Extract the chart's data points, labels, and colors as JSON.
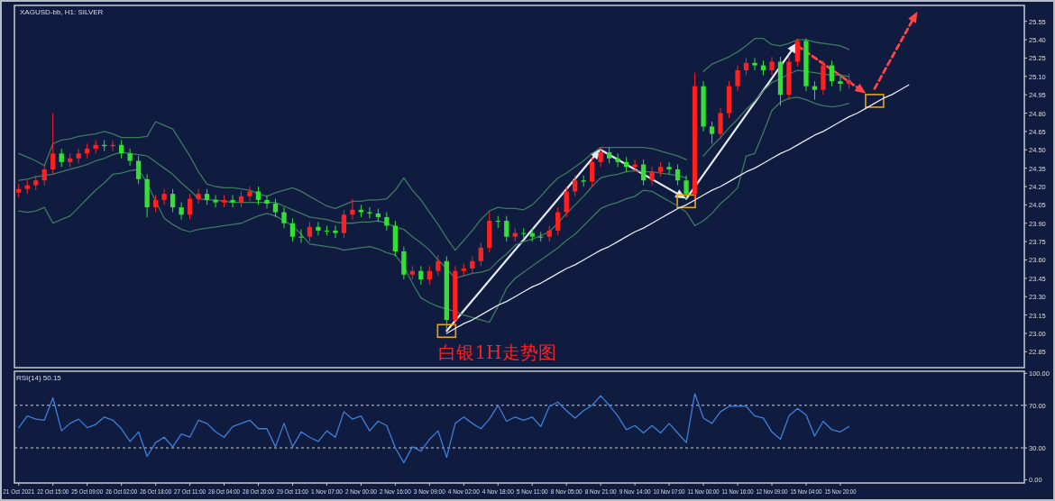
{
  "chart_data": [
    {
      "type": "candlestick",
      "title": "XAGUSD-bb, H1: SILVER",
      "annotations": [
        "白银1H走势图"
      ],
      "ylim": [
        22.72,
        25.68
      ],
      "tick_labels": "y",
      "yticks": [
        22.85,
        {
          "value": 23,
          "label": "23.00"
        },
        23.15,
        {
          "value": 23.3,
          "label": "23.30"
        },
        23.45,
        {
          "value": 23.6,
          "label": "23.60"
        },
        23.75,
        {
          "value": 23.9,
          "label": "23.90"
        },
        24.05,
        {
          "value": 24.2,
          "label": "24.20"
        },
        24.35,
        {
          "value": 24.5,
          "label": "24.50"
        },
        24.65,
        {
          "value": 24.8,
          "label": "24.80"
        },
        24.95,
        {
          "value": 25.1,
          "label": "25.10"
        },
        25.25,
        {
          "value": 25.4,
          "label": "25.40"
        },
        25.55
      ],
      "series": [
        {
          "type": "line",
          "color": "#3e7a62",
          "marker": "none",
          "values": [
            24.47,
            24.44,
            24.41,
            24.37,
            24.55,
            24.58,
            24.59,
            24.61,
            24.62,
            24.63,
            24.65,
            24.63,
            24.6,
            24.6,
            24.6,
            24.61,
            24.73,
            24.7,
            24.67,
            24.56,
            24.45,
            24.32,
            24.22,
            24.2,
            24.19,
            24.19,
            24.18,
            24.17,
            24.14,
            24.12,
            24.15,
            24.17,
            24.19,
            24.16,
            24.12,
            24.08,
            24.04,
            24.02,
            24.05,
            24.08,
            24.08,
            24.09,
            24.09,
            24.1,
            24.17,
            24.27,
            24.17,
            24.09,
            23.99,
            23.89,
            23.78,
            23.68,
            23.76,
            23.84,
            23.93,
            24,
            24.03,
            24.02,
            24.02,
            24.01,
            24.05,
            24.12,
            24.2,
            24.27,
            24.31,
            24.36,
            24.41,
            24.47,
            24.52,
            24.52,
            24.52,
            24.52,
            24.52,
            24.52,
            24.51,
            24.49,
            24.47,
            24.45,
            24.42,
            null,
            25.14,
            25.2,
            25.23,
            25.26,
            25.3,
            25.35,
            25.41,
            25.41,
            25.36,
            25.35,
            25.37,
            25.4,
            25.4,
            25.38,
            25.37,
            25.36,
            25.35,
            25.32,
            null,
            null,
            null,
            null,
            null,
            null,
            null,
            null,
            null,
            null,
            null,
            null,
            null,
            null,
            null,
            null,
            null,
            null,
            null,
            null
          ]
        },
        {
          "type": "line",
          "color": "#3e7a62",
          "marker": "none",
          "values": [
            24.25,
            24.26,
            24.28,
            24.29,
            24.3,
            24.32,
            24.34,
            24.36,
            24.38,
            24.41,
            24.43,
            24.46,
            24.48,
            24.47,
            24.46,
            24.45,
            24.4,
            24.35,
            24.3,
            24.23,
            24.17,
            24.1,
            24.09,
            24.09,
            24.08,
            24.07,
            24.07,
            24.07,
            24.07,
            24.07,
            24.07,
            24.04,
            24.01,
            23.98,
            23.95,
            23.94,
            23.93,
            23.91,
            23.9,
            23.9,
            23.91,
            23.91,
            23.92,
            23.9,
            23.87,
            23.85,
            23.79,
            23.74,
            23.68,
            23.6,
            23.53,
            23.45,
            23.47,
            23.49,
            23.5,
            23.52,
            23.59,
            23.65,
            23.72,
            23.75,
            23.77,
            23.8,
            23.83,
            23.9,
            23.98,
            24.05,
            24.12,
            24.2,
            24.27,
            24.29,
            24.3,
            24.32,
            24.33,
            24.32,
            24.32,
            24.31,
            24.3,
            24.29,
            24.27,
            null,
            24.45,
            24.53,
            24.6,
            24.68,
            24.75,
            24.83,
            24.9,
            24.98,
            25.05,
            25.08,
            25.12,
            25.15,
            25.14,
            25.13,
            25.12,
            25.11,
            25.11,
            25.1,
            null,
            null,
            null,
            null,
            null,
            null,
            null,
            null,
            null,
            null,
            null,
            null,
            null,
            null,
            null,
            null,
            null,
            null,
            null,
            null
          ]
        },
        {
          "type": "line",
          "color": "#3e7a62",
          "marker": "none",
          "values": [
            24,
            23.99,
            24,
            24.03,
            23.9,
            23.93,
            23.96,
            24.03,
            24.1,
            24.17,
            24.23,
            24.3,
            24.31,
            24.33,
            24.34,
            24.23,
            24.08,
            23.94,
            23.89,
            23.85,
            23.83,
            23.85,
            23.86,
            23.87,
            23.88,
            23.89,
            23.9,
            23.93,
            23.96,
            23.98,
            23.96,
            23.92,
            23.88,
            23.81,
            23.73,
            23.72,
            23.71,
            23.7,
            23.68,
            23.69,
            23.7,
            23.71,
            23.69,
            23.66,
            23.64,
            23.55,
            23.41,
            23.29,
            23.25,
            23.22,
            23.2,
            23.18,
            23.15,
            23.13,
            23.11,
            23.09,
            23.22,
            23.37,
            23.45,
            23.5,
            23.55,
            23.6,
            23.65,
            23.7,
            23.76,
            23.81,
            23.88,
            23.95,
            24.02,
            24.05,
            24.07,
            24.1,
            24.12,
            24.17,
            24.16,
            24.12,
            24.08,
            24.04,
            23.99,
            23.88,
            23.92,
            23.98,
            24.06,
            24.12,
            24.19,
            24.45,
            24.47,
            24.64,
            24.82,
            24.89,
            24.92,
            24.93,
            24.91,
            24.88,
            24.86,
            24.85,
            24.86,
            24.88,
            null,
            null,
            null,
            null,
            null,
            null,
            null,
            null,
            null,
            null,
            null,
            null,
            null,
            null,
            null,
            null,
            null,
            null,
            null,
            null
          ]
        },
        {
          "ohlc": [
            [
              24.15,
              24.22,
              24.11,
              24.18
            ],
            [
              24.18,
              24.25,
              24.14,
              24.21
            ],
            [
              24.21,
              24.29,
              24.17,
              24.25
            ],
            [
              24.25,
              24.38,
              24.21,
              24.34
            ],
            [
              24.34,
              24.8,
              24.3,
              24.47
            ],
            [
              24.47,
              24.51,
              24.36,
              24.4
            ],
            [
              24.4,
              24.47,
              24.36,
              24.43
            ],
            [
              24.43,
              24.51,
              24.39,
              24.47
            ],
            [
              24.47,
              24.55,
              24.43,
              24.51
            ],
            [
              24.51,
              24.58,
              24.47,
              24.54
            ],
            [
              24.54,
              24.58,
              24.49,
              24.53
            ],
            [
              24.53,
              24.58,
              24.49,
              24.54
            ],
            [
              24.54,
              24.58,
              24.43,
              24.47
            ],
            [
              24.47,
              24.51,
              24.37,
              24.41
            ],
            [
              24.41,
              24.45,
              24.22,
              24.26
            ],
            [
              24.26,
              24.3,
              23.95,
              24.03
            ],
            [
              24.03,
              24.13,
              23.99,
              24.09
            ],
            [
              24.09,
              24.18,
              24.05,
              24.14
            ],
            [
              24.14,
              24.18,
              23.99,
              24.03
            ],
            [
              24.03,
              24.07,
              23.93,
              23.97
            ],
            [
              23.97,
              24.14,
              23.93,
              24.1
            ],
            [
              24.1,
              24.18,
              24.06,
              24.14
            ],
            [
              24.14,
              24.18,
              24.05,
              24.09
            ],
            [
              24.09,
              24.13,
              24.03,
              24.07
            ],
            [
              24.07,
              24.13,
              24.03,
              24.09
            ],
            [
              24.09,
              24.13,
              24.03,
              24.07
            ],
            [
              24.07,
              24.16,
              24.03,
              24.12
            ],
            [
              24.12,
              24.2,
              24.08,
              24.16
            ],
            [
              24.16,
              24.2,
              24.05,
              24.09
            ],
            [
              24.09,
              24.13,
              24.02,
              24.06
            ],
            [
              24.06,
              24.1,
              23.95,
              23.99
            ],
            [
              23.99,
              24.03,
              23.86,
              23.9
            ],
            [
              23.9,
              23.94,
              23.75,
              23.79
            ],
            [
              23.79,
              23.85,
              23.74,
              23.79
            ],
            [
              23.79,
              23.91,
              23.75,
              23.87
            ],
            [
              23.87,
              23.91,
              23.8,
              23.84
            ],
            [
              23.84,
              23.88,
              23.8,
              23.84
            ],
            [
              23.84,
              23.88,
              23.78,
              23.82
            ],
            [
              23.82,
              24.01,
              23.78,
              23.97
            ],
            [
              23.97,
              24.1,
              23.93,
              24.01
            ],
            [
              24.01,
              24.05,
              23.95,
              23.99
            ],
            [
              23.99,
              24.03,
              23.94,
              23.98
            ],
            [
              23.98,
              24.02,
              23.91,
              23.95
            ],
            [
              23.95,
              23.99,
              23.84,
              23.88
            ],
            [
              23.88,
              23.92,
              23.63,
              23.67
            ],
            [
              23.67,
              23.71,
              23.44,
              23.48
            ],
            [
              23.48,
              23.55,
              23.44,
              23.51
            ],
            [
              23.51,
              23.55,
              23.4,
              23.44
            ],
            [
              23.44,
              23.55,
              23.4,
              23.51
            ],
            [
              23.51,
              23.64,
              23.47,
              23.59
            ],
            [
              23.59,
              23.63,
              23.03,
              23.11
            ],
            [
              23.11,
              23.55,
              23.07,
              23.51
            ],
            [
              23.51,
              23.57,
              23.47,
              23.53
            ],
            [
              23.53,
              23.63,
              23.49,
              23.59
            ],
            [
              23.59,
              23.74,
              23.55,
              23.7
            ],
            [
              23.7,
              23.99,
              23.66,
              23.92
            ],
            [
              23.92,
              23.96,
              23.86,
              23.92
            ],
            [
              23.92,
              23.96,
              23.75,
              23.79
            ],
            [
              23.79,
              23.86,
              23.75,
              23.82
            ],
            [
              23.82,
              23.86,
              23.78,
              23.82
            ],
            [
              23.82,
              23.86,
              23.75,
              23.79
            ],
            [
              23.79,
              23.83,
              23.75,
              23.79
            ],
            [
              23.79,
              23.88,
              23.75,
              23.84
            ],
            [
              23.84,
              24.03,
              23.8,
              23.99
            ],
            [
              23.99,
              24.2,
              23.95,
              24.16
            ],
            [
              24.16,
              24.29,
              24.12,
              24.25
            ],
            [
              24.25,
              24.29,
              24.2,
              24.24
            ],
            [
              24.24,
              24.44,
              24.2,
              24.4
            ],
            [
              24.4,
              24.52,
              24.36,
              24.48
            ],
            [
              24.48,
              24.52,
              24.39,
              24.43
            ],
            [
              24.43,
              24.47,
              24.36,
              24.4
            ],
            [
              24.4,
              24.44,
              24.32,
              24.36
            ],
            [
              24.36,
              24.42,
              24.32,
              24.38
            ],
            [
              24.38,
              24.42,
              24.21,
              24.25
            ],
            [
              24.25,
              24.36,
              24.21,
              24.32
            ],
            [
              24.32,
              24.4,
              24.28,
              24.36
            ],
            [
              24.36,
              24.4,
              24.3,
              24.34
            ],
            [
              24.34,
              24.38,
              24.21,
              24.25
            ],
            [
              24.25,
              24.29,
              24.09,
              24.14
            ],
            [
              24.14,
              25.13,
              24.1,
              25.02
            ],
            [
              25.02,
              25.06,
              24.65,
              24.69
            ],
            [
              24.69,
              24.73,
              24.55,
              24.63
            ],
            [
              24.63,
              24.84,
              24.59,
              24.8
            ],
            [
              24.8,
              25.06,
              24.76,
              25.02
            ],
            [
              25.02,
              25.19,
              24.98,
              25.15
            ],
            [
              25.15,
              25.25,
              25.11,
              25.21
            ],
            [
              25.21,
              25.25,
              25.15,
              25.19
            ],
            [
              25.19,
              25.23,
              25.11,
              25.15
            ],
            [
              25.15,
              25.26,
              25.11,
              25.22
            ],
            [
              25.22,
              25.26,
              24.86,
              24.95
            ],
            [
              24.95,
              25.26,
              24.91,
              25.22
            ],
            [
              25.22,
              25.41,
              25.18,
              25.39
            ],
            [
              25.39,
              25.41,
              24.98,
              25.02
            ],
            [
              25.02,
              25.06,
              24.91,
              24.99
            ],
            [
              24.99,
              25.23,
              24.95,
              25.19
            ],
            [
              25.19,
              25.23,
              25.02,
              25.06
            ],
            [
              25.06,
              25.12,
              24.98,
              25.04
            ],
            [
              25.04,
              25.12,
              25,
              25.07
            ],
            null,
            null,
            null,
            null,
            null,
            null,
            null,
            null,
            null,
            null,
            null,
            null,
            null,
            null,
            null,
            null,
            null,
            null,
            null,
            null
          ],
          "colors": [
            "#ff2020",
            "#ff2020",
            "#ff2020",
            "#ff2020",
            "#ff2020",
            "#33e033",
            "#ff2020",
            "#ff2020",
            "#ff2020",
            "#ff2020",
            "#33e033",
            "#ff2020",
            "#33e033",
            "#33e033",
            "#33e033",
            "#33e033",
            "#ff2020",
            "#ff2020",
            "#33e033",
            "#33e033",
            "#ff2020",
            "#ff2020",
            "#33e033",
            "#33e033",
            "#ff2020",
            "#33e033",
            "#ff2020",
            "#ff2020",
            "#33e033",
            "#33e033",
            "#33e033",
            "#33e033",
            "#33e033",
            "#33e033",
            "#ff2020",
            "#33e033",
            "#33e033",
            "#33e033",
            "#ff2020",
            "#ff2020",
            "#33e033",
            "#33e033",
            "#33e033",
            "#33e033",
            "#33e033",
            "#33e033",
            "#ff2020",
            "#33e033",
            "#ff2020",
            "#ff2020",
            "#33e033",
            "#ff2020",
            "#ff2020",
            "#ff2020",
            "#ff2020",
            "#ff2020",
            "#33e033",
            "#33e033",
            "#ff2020",
            "#33e033",
            "#33e033",
            "#33e033",
            "#ff2020",
            "#ff2020",
            "#ff2020",
            "#ff2020",
            "#33e033",
            "#ff2020",
            "#ff2020",
            "#33e033",
            "#33e033",
            "#33e033",
            "#ff2020",
            "#33e033",
            "#ff2020",
            "#ff2020",
            "#33e033",
            "#33e033",
            "#33e033",
            "#ff2020",
            "#33e033",
            "#33e033",
            "#ff2020",
            "#ff2020",
            "#ff2020",
            "#ff2020",
            "#33e033",
            "#33e033",
            "#ff2020",
            "#33e033",
            "#ff2020",
            "#ff2020",
            "#33e033",
            "#33e033",
            "#ff2020",
            "#33e033",
            "#33e033",
            "#ff2020",
            null,
            null,
            null,
            null,
            null,
            null,
            null,
            null,
            null,
            null,
            null,
            null,
            null,
            null,
            null,
            null,
            null,
            null,
            null,
            null
          ]
        },
        {
          "type": "line",
          "color": "#e6eaf2",
          "marker": "none",
          "values": [
            null,
            null,
            null,
            null,
            null,
            null,
            null,
            null,
            null,
            null,
            null,
            null,
            null,
            null,
            null,
            null,
            null,
            null,
            null,
            null,
            null,
            null,
            null,
            null,
            null,
            null,
            null,
            null,
            null,
            null,
            null,
            null,
            null,
            null,
            null,
            null,
            null,
            null,
            null,
            null,
            null,
            null,
            null,
            null,
            null,
            null,
            null,
            null,
            null,
            null,
            23,
            23.04,
            23.08,
            23.11,
            23.15,
            23.19,
            23.23,
            23.26,
            23.3,
            23.34,
            23.38,
            23.41,
            23.45,
            23.49,
            23.53,
            23.56,
            23.6,
            23.64,
            23.68,
            23.71,
            23.75,
            23.79,
            23.83,
            23.86,
            23.9,
            23.94,
            23.98,
            24.02,
            24.05,
            24.09,
            24.13,
            24.17,
            24.2,
            24.24,
            24.28,
            24.32,
            24.35,
            24.39,
            24.43,
            24.47,
            24.5,
            24.54,
            24.58,
            24.62,
            24.65,
            24.69,
            24.73,
            24.77,
            24.8,
            24.84,
            24.88,
            24.92,
            24.95,
            24.99,
            25.03,
            null,
            null,
            null,
            null,
            null,
            null,
            null,
            null,
            null,
            null,
            null,
            null,
            null
          ]
        }
      ]
    },
    {
      "type": "line",
      "title": "RSI(14) 50.15",
      "ylim": [
        -3,
        102
      ],
      "categories": [
        "21 Oct 2021",
        null,
        null,
        null,
        "22 Oct 15:00",
        null,
        null,
        null,
        "25 Oct 09:00",
        null,
        null,
        null,
        "26 Oct 02:00",
        null,
        null,
        null,
        "26 Oct 18:00",
        null,
        null,
        null,
        "27 Oct 11:00",
        null,
        null,
        null,
        "28 Oct 04:00",
        null,
        null,
        null,
        "28 Oct 20:00",
        null,
        null,
        null,
        "29 Oct 13:00",
        null,
        null,
        null,
        "1 Nov 07:00",
        null,
        null,
        null,
        "2 Nov 00:00",
        null,
        null,
        null,
        "2 Nov 16:00",
        null,
        null,
        null,
        "3 Nov 09:00",
        null,
        null,
        null,
        "4 Nov 02:00",
        null,
        null,
        null,
        "4 Nov 18:00",
        null,
        null,
        null,
        "5 Nov 11:00",
        null,
        null,
        null,
        "8 Nov 05:00",
        null,
        null,
        null,
        "8 Nov 21:00",
        null,
        null,
        null,
        "9 Nov 14:00",
        null,
        null,
        null,
        "10 Nov 07:00",
        null,
        null,
        null,
        "11 Nov 00:00",
        null,
        null,
        null,
        "11 Nov 16:00",
        null,
        null,
        null,
        "12 Nov 09:00",
        null,
        null,
        null,
        "15 Nov 04:00",
        null,
        null,
        null,
        "15 Nov 20:00",
        null,
        null,
        null,
        null,
        null,
        null,
        null,
        null,
        null,
        null,
        null,
        null,
        null,
        null,
        null,
        null,
        null,
        null,
        null,
        null,
        null
      ],
      "yticks": [
        {
          "value": 0,
          "label": "0.00"
        },
        {
          "value": 30,
          "label": "30.00"
        },
        {
          "value": 70,
          "label": "70.00"
        },
        {
          "value": 100,
          "label": "100.00"
        }
      ],
      "ref_lines": [
        {
          "axis": "y",
          "value": 70,
          "color": "#c8ccd4",
          "line_style": "dashed"
        },
        {
          "axis": "y",
          "value": 30,
          "color": "#c8ccd4",
          "line_style": "dashed"
        }
      ],
      "series": [
        {
          "color": "#3d7fd9",
          "marker": "none",
          "values": [
            49,
            60,
            57,
            56,
            77,
            46,
            53,
            57,
            49,
            52,
            59,
            56,
            48,
            36,
            45,
            22,
            35,
            40,
            31,
            43,
            40,
            56,
            53,
            45,
            40,
            50,
            53,
            56,
            48,
            48,
            31,
            53,
            31,
            45,
            40,
            36,
            46,
            40,
            64,
            57,
            60,
            46,
            55,
            51,
            30,
            16,
            31,
            27,
            38,
            46,
            21,
            53,
            59,
            53,
            48,
            57,
            70,
            55,
            59,
            56,
            59,
            50,
            69,
            73,
            65,
            58,
            65,
            70,
            79,
            70,
            60,
            47,
            51,
            44,
            51,
            44,
            53,
            44,
            35,
            81,
            58,
            53,
            64,
            69,
            69,
            69,
            60,
            58,
            45,
            38,
            60,
            67,
            61,
            41,
            55,
            47,
            45,
            50,
            null,
            null,
            null,
            null,
            null,
            null,
            null,
            null,
            null,
            null,
            null,
            null,
            null,
            null,
            null,
            null,
            null,
            null,
            null,
            null
          ]
        }
      ]
    }
  ]
}
